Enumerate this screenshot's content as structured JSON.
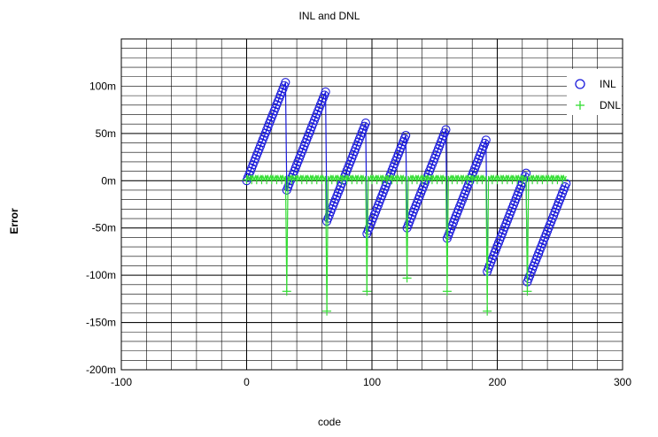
{
  "chart_data": {
    "type": "scatter",
    "title": "INL and DNL",
    "xlabel": "code",
    "ylabel": "Error",
    "xlim": [
      -100,
      300
    ],
    "ylim": [
      -0.2,
      0.15
    ],
    "x_ticks": [
      -100,
      0,
      100,
      200,
      300
    ],
    "x_tick_labels": [
      "-100",
      "0",
      "100",
      "200",
      "300"
    ],
    "y_ticks": [
      -0.2,
      -0.15,
      -0.1,
      -0.05,
      0,
      0.05,
      0.1
    ],
    "y_tick_labels": [
      "-200m",
      "-150m",
      "-100m",
      "-50m",
      "0m",
      "50m",
      "100m"
    ],
    "grid": true,
    "legend": {
      "placement": "top-right",
      "entries": [
        {
          "label": "INL",
          "marker": "circle",
          "color": "#1a1adb"
        },
        {
          "label": "DNL",
          "marker": "plus",
          "color": "#33dd33"
        }
      ]
    },
    "series": [
      {
        "name": "INL",
        "marker": "circle",
        "color": "#1a1adb",
        "description_segments": [
          {
            "x_start": 0,
            "x_end": 31,
            "y_start": 0.0,
            "y_end": 0.104
          },
          {
            "x_start": 32,
            "x_end": 63,
            "y_start": -0.01,
            "y_end": 0.094
          },
          {
            "x_start": 64,
            "x_end": 95,
            "y_start": -0.043,
            "y_end": 0.061
          },
          {
            "x_start": 96,
            "x_end": 127,
            "y_start": -0.056,
            "y_end": 0.048
          },
          {
            "x_start": 128,
            "x_end": 159,
            "y_start": -0.05,
            "y_end": 0.054
          },
          {
            "x_start": 160,
            "x_end": 191,
            "y_start": -0.061,
            "y_end": 0.043
          },
          {
            "x_start": 192,
            "x_end": 223,
            "y_start": -0.096,
            "y_end": 0.008
          },
          {
            "x_start": 224,
            "x_end": 255,
            "y_start": -0.107,
            "y_end": -0.003
          }
        ]
      },
      {
        "name": "DNL",
        "marker": "plus",
        "color": "#33dd33",
        "baseline": 0.003,
        "spikes": [
          {
            "x": 32,
            "y": -0.117
          },
          {
            "x": 64,
            "y": -0.138
          },
          {
            "x": 96,
            "y": -0.117
          },
          {
            "x": 128,
            "y": -0.103
          },
          {
            "x": 160,
            "y": -0.117
          },
          {
            "x": 192,
            "y": -0.138
          },
          {
            "x": 224,
            "y": -0.117
          }
        ],
        "x_range": [
          0,
          255
        ]
      }
    ]
  },
  "colors": {
    "grid_minor": "#000000",
    "frame": "#000000",
    "inl": "#1a1adb",
    "dnl": "#33dd33"
  }
}
